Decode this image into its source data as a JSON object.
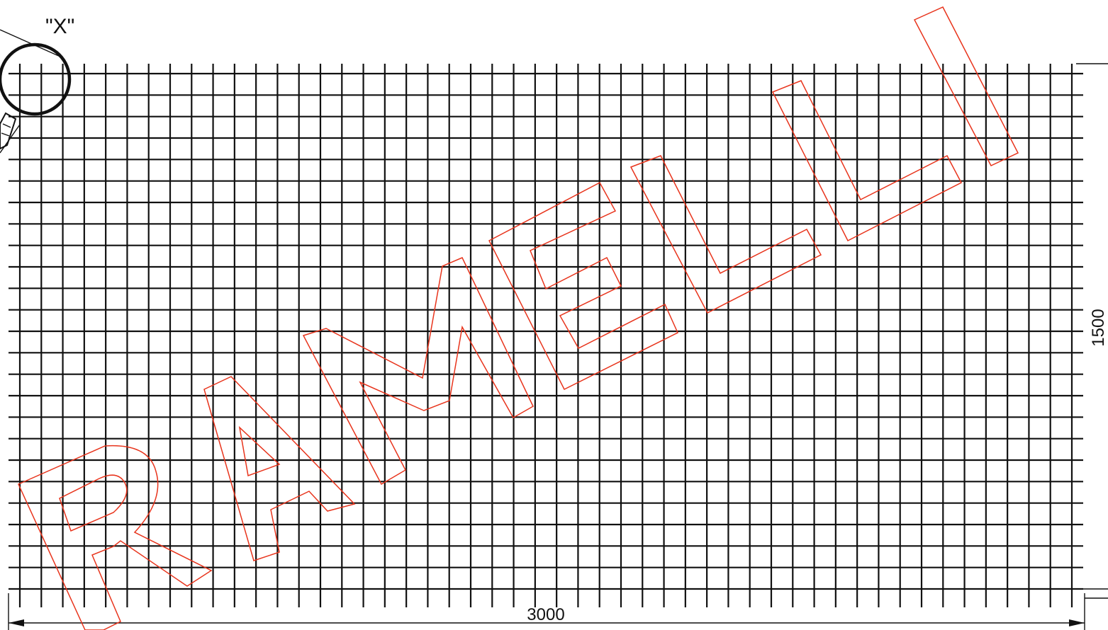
{
  "drawing": {
    "detail_marker_label": "\"X\"",
    "width_dimension": "3000",
    "height_dimension": "1500",
    "mesh": {
      "vertical_wire_count": 50,
      "horizontal_wire_count": 25
    },
    "watermark": {
      "text": "RAMELLI",
      "color": "#e8341c"
    },
    "line_color": "#111111"
  }
}
